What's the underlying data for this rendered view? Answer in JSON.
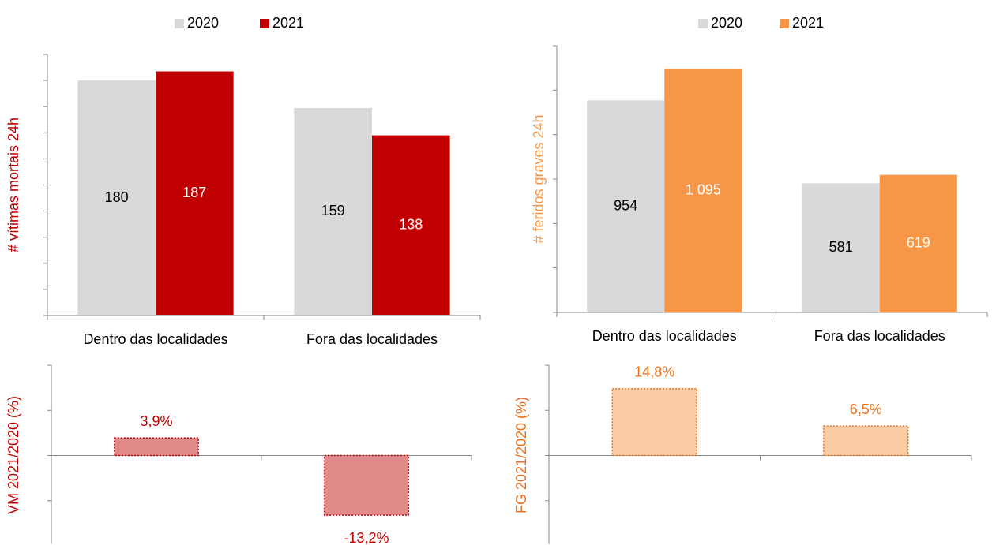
{
  "chart_data": [
    {
      "type": "bar",
      "ylabel": "# vítimas mortais 24h",
      "ylabel_color": "#c00000",
      "categories": [
        "Dentro das localidades",
        "Fora das localidades"
      ],
      "series": [
        {
          "name": "2020",
          "color": "#d9d9d9",
          "values": [
            180,
            159
          ]
        },
        {
          "name": "2021",
          "color": "#c00000",
          "values": [
            187,
            138
          ]
        }
      ],
      "ylim": [
        0,
        200
      ],
      "yticks": [
        0,
        20,
        40,
        60,
        80,
        100,
        120,
        140,
        160,
        180,
        200
      ]
    },
    {
      "type": "bar",
      "ylabel": "# feridos graves 24h",
      "ylabel_color": "#f79646",
      "categories": [
        "Dentro das localidades",
        "Fora das localidades"
      ],
      "series": [
        {
          "name": "2020",
          "color": "#d9d9d9",
          "values": [
            954,
            581
          ]
        },
        {
          "name": "2021",
          "color": "#f79646",
          "values": [
            1095,
            619
          ],
          "value_labels": [
            "1 095",
            "619"
          ]
        }
      ],
      "ylim": [
        0,
        1200
      ],
      "yticks": [
        0,
        200,
        400,
        600,
        800,
        1000,
        1200
      ]
    },
    {
      "type": "bar",
      "ylabel": "VM 2021/2020 (%)",
      "ylabel_color": "#c00000",
      "categories": [
        null,
        null
      ],
      "values": [
        3.9,
        -13.2
      ],
      "value_labels": [
        "3,9%",
        "-13,2%"
      ],
      "color": "#e08a8a",
      "edgecolor": "#c00000",
      "ylim": [
        -20,
        20
      ],
      "yticks": [
        -20,
        -10,
        0,
        10,
        20
      ]
    },
    {
      "type": "bar",
      "ylabel": "FG 2021/2020 (%)",
      "ylabel_color": "#e9711c",
      "categories": [
        null,
        null
      ],
      "values": [
        14.8,
        6.5
      ],
      "value_labels": [
        "14,8%",
        "6,5%"
      ],
      "color": "#fbcba4",
      "edgecolor": "#e9711c",
      "ylim": [
        -20,
        20
      ],
      "yticks": [
        -20,
        -10,
        0,
        10,
        20
      ]
    }
  ]
}
